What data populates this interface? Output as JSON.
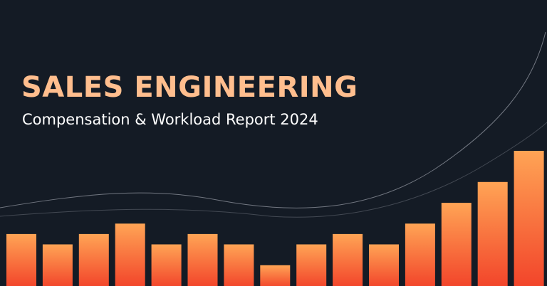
{
  "banner": {
    "title": "SALES ENGINEERING",
    "subtitle": "Compensation & Workload Report 2024"
  },
  "colors": {
    "background": "#141b25",
    "title": "#ffbe8e",
    "subtitle": "#ffffff",
    "bar_top": "#ffa455",
    "bar_bottom": "#f2442a",
    "curve": "#8a8f99"
  },
  "decor_bars": {
    "values": [
      5,
      4,
      5,
      6,
      4,
      5,
      4,
      2,
      4,
      5,
      4,
      6,
      8,
      10,
      13
    ],
    "max": 13
  }
}
